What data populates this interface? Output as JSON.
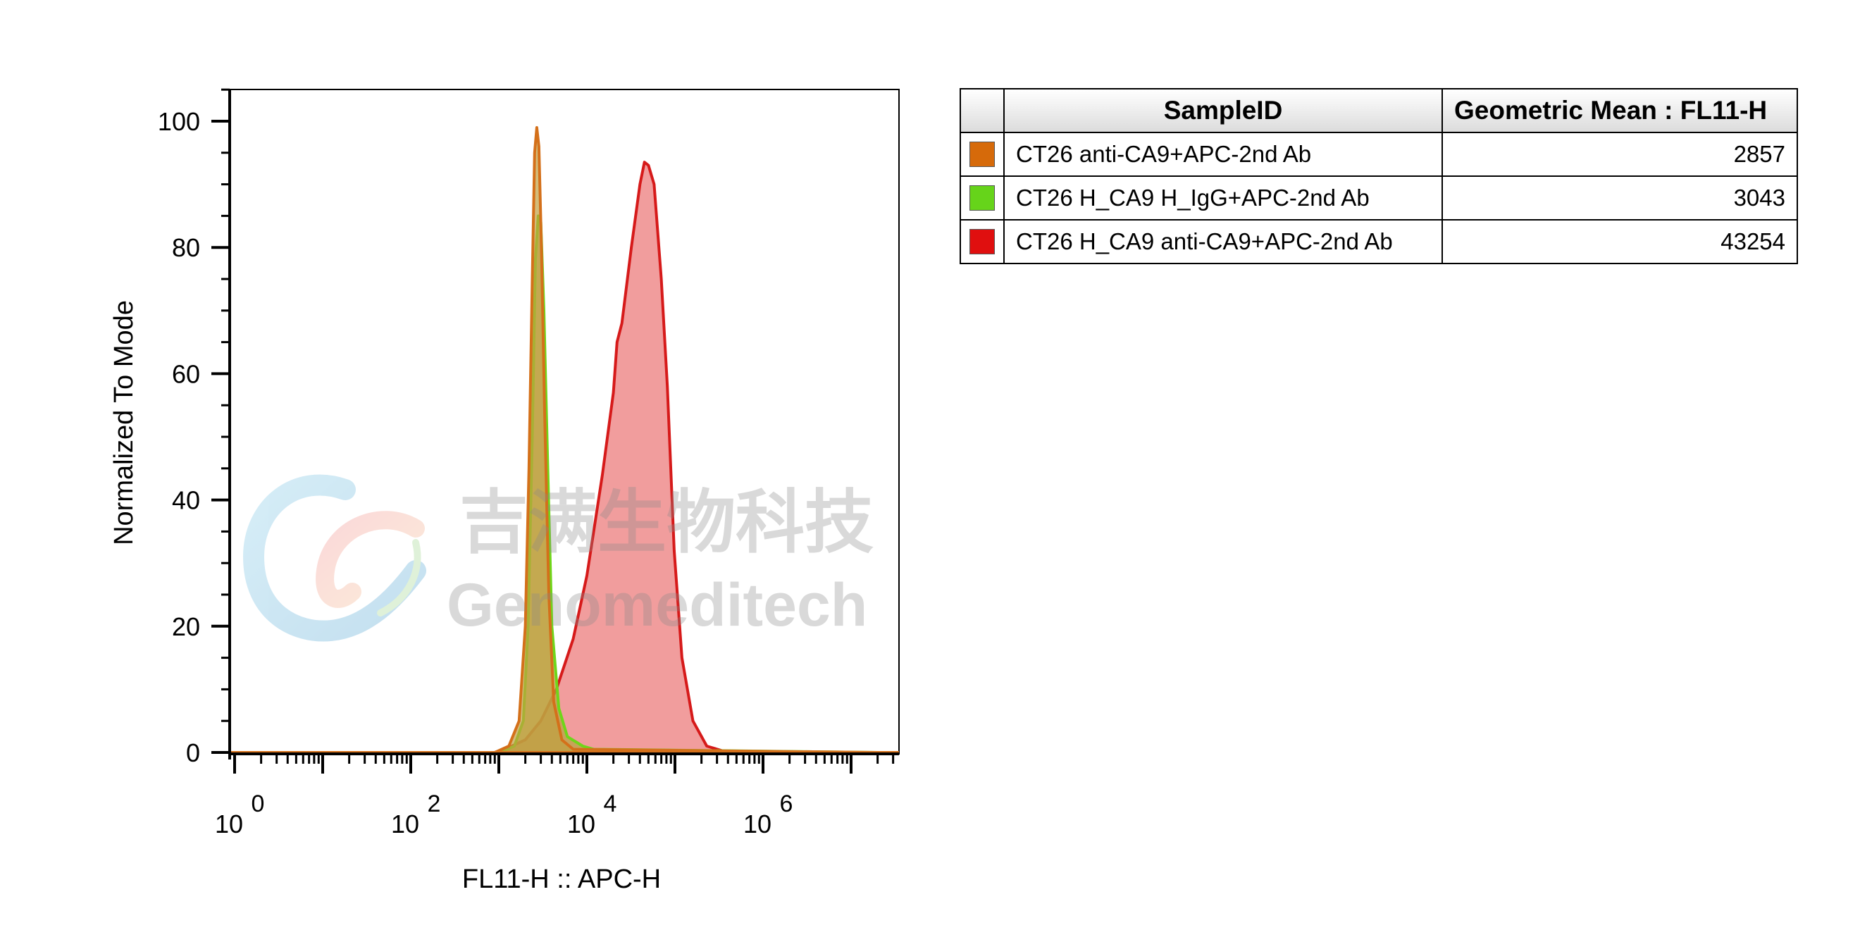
{
  "chart_data": {
    "type": "area",
    "xlabel": "FL11-H :: APC-H",
    "ylabel": "Normalized To Mode",
    "xscale": "log",
    "x_tick_labels": [
      {
        "base": "10",
        "exp": "0"
      },
      {
        "base": "10",
        "exp": "2"
      },
      {
        "base": "10",
        "exp": "4"
      },
      {
        "base": "10",
        "exp": "6"
      }
    ],
    "y_ticks": [
      0,
      20,
      40,
      60,
      80,
      100
    ],
    "ylim": [
      0,
      105
    ],
    "series": [
      {
        "name": "CT26 H_CA9 anti-CA9+APC-2nd Ab",
        "color": "#d61a1a",
        "fill": "#ee8c8c",
        "points": [
          [
            300,
            0
          ],
          [
            900,
            0
          ],
          [
            1300,
            0.8
          ],
          [
            2000,
            2
          ],
          [
            3000,
            5
          ],
          [
            4500,
            10
          ],
          [
            7000,
            18
          ],
          [
            10000,
            28
          ],
          [
            15000,
            44
          ],
          [
            20000,
            57
          ],
          [
            22000,
            65
          ],
          [
            25000,
            68
          ],
          [
            32000,
            80
          ],
          [
            40000,
            90
          ],
          [
            45000,
            93.5
          ],
          [
            50000,
            93
          ],
          [
            58000,
            90
          ],
          [
            70000,
            75
          ],
          [
            82000,
            58
          ],
          [
            98000,
            32
          ],
          [
            120000,
            15
          ],
          [
            160000,
            5
          ],
          [
            230000,
            1
          ],
          [
            400000,
            0
          ],
          [
            20000000,
            0
          ]
        ]
      },
      {
        "name": "CT26 H_CA9 H_IgG+APC-2nd Ab",
        "color": "#6fd61a",
        "fill": "#b5a53d",
        "points": [
          [
            300,
            0
          ],
          [
            1000,
            0
          ],
          [
            1500,
            1
          ],
          [
            1900,
            5
          ],
          [
            2150,
            20
          ],
          [
            2400,
            50
          ],
          [
            2600,
            78
          ],
          [
            2800,
            85
          ],
          [
            3000,
            84
          ],
          [
            3250,
            70
          ],
          [
            3600,
            45
          ],
          [
            4000,
            20
          ],
          [
            4800,
            7
          ],
          [
            6000,
            2.5
          ],
          [
            9000,
            1
          ],
          [
            12000,
            0.5
          ],
          [
            20000000,
            0
          ]
        ]
      },
      {
        "name": "CT26 anti-CA9+APC-2nd Ab",
        "color": "#d4701a",
        "fill": "#c0a040",
        "points": [
          [
            300,
            0
          ],
          [
            900,
            0
          ],
          [
            1300,
            1
          ],
          [
            1700,
            5
          ],
          [
            2000,
            20
          ],
          [
            2200,
            45
          ],
          [
            2400,
            75
          ],
          [
            2550,
            95
          ],
          [
            2700,
            99
          ],
          [
            2850,
            96
          ],
          [
            3050,
            80
          ],
          [
            3300,
            55
          ],
          [
            3700,
            25
          ],
          [
            4200,
            8
          ],
          [
            5200,
            2
          ],
          [
            7000,
            0.5
          ],
          [
            20000000,
            0
          ]
        ]
      }
    ]
  },
  "watermark": {
    "chinese": "吉满生物科技",
    "english": "Genomeditech"
  },
  "table": {
    "headers": [
      "",
      "SampleID",
      "Geometric Mean : FL11-H"
    ],
    "rows": [
      {
        "color": "#d66a0a",
        "id": "CT26 anti-CA9+APC-2nd Ab",
        "value": "2857"
      },
      {
        "color": "#66d41a",
        "id": "CT26 H_CA9 H_IgG+APC-2nd Ab",
        "value": "3043"
      },
      {
        "color": "#e00f0f",
        "id": "CT26 H_CA9 anti-CA9+APC-2nd Ab",
        "value": "43254"
      }
    ]
  }
}
